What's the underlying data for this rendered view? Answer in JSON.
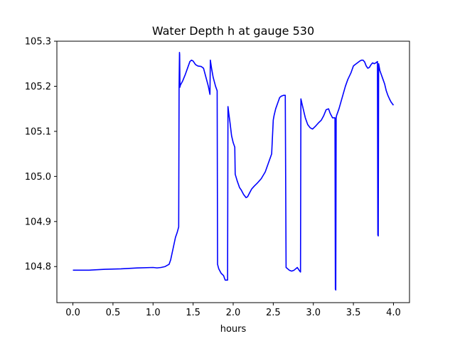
{
  "chart_data": {
    "type": "line",
    "title": "Water Depth h at gauge 530",
    "xlabel": "hours",
    "ylabel": "",
    "xlim": [
      -0.2,
      4.2
    ],
    "ylim": [
      104.72,
      105.3
    ],
    "xticks": [
      0.0,
      0.5,
      1.0,
      1.5,
      2.0,
      2.5,
      3.0,
      3.5,
      4.0
    ],
    "xtick_labels": [
      "0.0",
      "0.5",
      "1.0",
      "1.5",
      "2.0",
      "2.5",
      "3.0",
      "3.5",
      "4.0"
    ],
    "yticks": [
      104.8,
      104.9,
      105.0,
      105.1,
      105.2,
      105.3
    ],
    "ytick_labels": [
      "104.8",
      "104.9",
      "105.0",
      "105.1",
      "105.2",
      "105.3"
    ],
    "grid": false,
    "series": [
      {
        "color": "#0000ff",
        "x": [
          0.0,
          0.2,
          0.4,
          0.6,
          0.8,
          1.0,
          1.05,
          1.1,
          1.15,
          1.2,
          1.22,
          1.25,
          1.28,
          1.3,
          1.32,
          1.325,
          1.33,
          1.332,
          1.336,
          1.34,
          1.37,
          1.4,
          1.43,
          1.46,
          1.48,
          1.5,
          1.53,
          1.56,
          1.6,
          1.63,
          1.66,
          1.69,
          1.71,
          1.715,
          1.73,
          1.75,
          1.78,
          1.8,
          1.805,
          1.82,
          1.85,
          1.88,
          1.9,
          1.93,
          1.935,
          1.945,
          1.96,
          1.98,
          2.0,
          2.02,
          2.025,
          2.05,
          2.08,
          2.1,
          2.13,
          2.16,
          2.18,
          2.2,
          2.23,
          2.26,
          2.3,
          2.35,
          2.4,
          2.45,
          2.48,
          2.5,
          2.51,
          2.53,
          2.56,
          2.58,
          2.6,
          2.63,
          2.65,
          2.66,
          2.7,
          2.73,
          2.76,
          2.8,
          2.83,
          2.84,
          2.845,
          2.86,
          2.88,
          2.9,
          2.93,
          2.96,
          2.99,
          3.03,
          3.06,
          3.1,
          3.13,
          3.16,
          3.19,
          3.21,
          3.24,
          3.27,
          3.275,
          3.28,
          3.285,
          3.29,
          3.32,
          3.36,
          3.4,
          3.43,
          3.47,
          3.5,
          3.52,
          3.55,
          3.58,
          3.6,
          3.62,
          3.64,
          3.66,
          3.68,
          3.7,
          3.72,
          3.74,
          3.76,
          3.78,
          3.8,
          3.805,
          3.81,
          3.815,
          3.82,
          3.825,
          3.83,
          3.85,
          3.87,
          3.89,
          3.91,
          3.93,
          3.95,
          3.97,
          4.0
        ],
        "y": [
          104.792,
          104.792,
          104.794,
          104.795,
          104.797,
          104.798,
          104.797,
          104.798,
          104.8,
          104.805,
          104.815,
          104.84,
          104.865,
          104.875,
          104.888,
          105.2,
          105.275,
          105.27,
          105.198,
          105.202,
          105.212,
          105.225,
          105.24,
          105.255,
          105.258,
          105.256,
          105.248,
          105.245,
          105.244,
          105.24,
          105.22,
          105.2,
          105.182,
          105.258,
          105.24,
          105.22,
          105.2,
          105.19,
          104.805,
          104.795,
          104.785,
          104.78,
          104.77,
          104.77,
          105.155,
          105.14,
          105.12,
          105.09,
          105.075,
          105.065,
          105.005,
          104.99,
          104.975,
          104.97,
          104.96,
          104.953,
          104.955,
          104.962,
          104.972,
          104.978,
          104.985,
          104.995,
          105.01,
          105.035,
          105.05,
          105.125,
          105.135,
          105.15,
          105.165,
          105.175,
          105.178,
          105.18,
          105.18,
          104.798,
          104.792,
          104.79,
          104.792,
          104.798,
          104.79,
          104.788,
          105.172,
          105.16,
          105.145,
          105.13,
          105.115,
          105.108,
          105.105,
          105.112,
          105.118,
          105.125,
          105.135,
          105.148,
          105.15,
          105.14,
          105.13,
          105.13,
          104.75,
          104.748,
          105.13,
          105.135,
          105.15,
          105.175,
          105.2,
          105.215,
          105.23,
          105.245,
          105.248,
          105.252,
          105.256,
          105.258,
          105.258,
          105.254,
          105.245,
          105.24,
          105.242,
          105.248,
          105.252,
          105.25,
          105.252,
          105.255,
          104.87,
          104.868,
          105.25,
          105.245,
          105.24,
          105.235,
          105.225,
          105.215,
          105.205,
          105.19,
          105.18,
          105.172,
          105.165,
          105.158
        ]
      }
    ]
  }
}
